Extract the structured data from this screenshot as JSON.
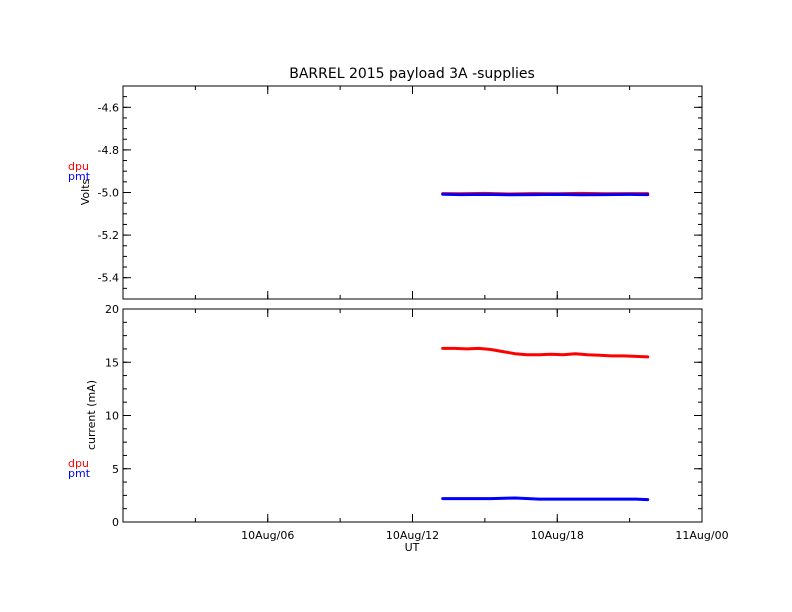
{
  "chart_data": [
    {
      "type": "line",
      "title": "BARREL 2015 payload 3A -supplies",
      "ylabel": "Volts",
      "ylim": [
        -5.5,
        -4.5
      ],
      "yticks": [
        -4.6,
        -4.8,
        -5.0,
        -5.2,
        -5.4
      ],
      "ytick_labels": [
        "-4.6",
        "-4.8",
        "-5.0",
        "-5.2",
        "-5.4"
      ],
      "legend": {
        "placement": "left",
        "entries": [
          "dpu",
          "pmt"
        ]
      },
      "series": [
        {
          "name": "dpu",
          "color": "#ff0000",
          "x": [
            13.25,
            14,
            15,
            16,
            17,
            18,
            19,
            20,
            21,
            21.75
          ],
          "y": [
            -5.005,
            -5.006,
            -5.004,
            -5.007,
            -5.005,
            -5.006,
            -5.004,
            -5.006,
            -5.005,
            -5.005
          ]
        },
        {
          "name": "pmt",
          "color": "#0000ff",
          "x": [
            13.25,
            14,
            15,
            16,
            17,
            18,
            19,
            20,
            21,
            21.75
          ],
          "y": [
            -5.008,
            -5.01,
            -5.009,
            -5.011,
            -5.01,
            -5.009,
            -5.011,
            -5.01,
            -5.009,
            -5.01
          ]
        }
      ]
    },
    {
      "type": "line",
      "ylabel": "current (mA)",
      "xlabel": "UT",
      "ylim": [
        0,
        20
      ],
      "yticks": [
        0,
        5,
        10,
        15,
        20
      ],
      "ytick_labels": [
        "0",
        "5",
        "10",
        "15",
        "20"
      ],
      "xlim": [
        0,
        24
      ],
      "xticks": [
        6,
        12,
        18,
        24
      ],
      "xtick_labels": [
        "10Aug/06",
        "10Aug/12",
        "10Aug/18",
        "11Aug/00"
      ],
      "legend": {
        "placement": "left",
        "entries": [
          "dpu",
          "pmt"
        ]
      },
      "series": [
        {
          "name": "dpu",
          "color": "#ff0000",
          "x": [
            13.25,
            13.75,
            14.25,
            14.75,
            15.25,
            15.75,
            16.25,
            16.75,
            17.25,
            17.75,
            18.25,
            18.75,
            19.25,
            19.75,
            20.25,
            20.75,
            21.25,
            21.75
          ],
          "y": [
            16.3,
            16.3,
            16.25,
            16.3,
            16.2,
            16.0,
            15.8,
            15.7,
            15.7,
            15.75,
            15.7,
            15.8,
            15.7,
            15.65,
            15.6,
            15.6,
            15.55,
            15.5
          ]
        },
        {
          "name": "pmt",
          "color": "#0000ff",
          "x": [
            13.25,
            14.25,
            15.25,
            16.25,
            17.25,
            18.25,
            19.25,
            20.25,
            21.25,
            21.75
          ],
          "y": [
            2.2,
            2.2,
            2.2,
            2.25,
            2.15,
            2.15,
            2.15,
            2.15,
            2.15,
            2.1
          ]
        }
      ]
    }
  ]
}
